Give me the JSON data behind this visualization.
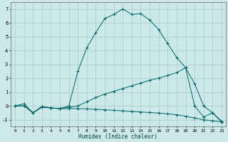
{
  "xlabel": "Humidex (Indice chaleur)",
  "background_color": "#cce8e8",
  "grid_color": "#aacccc",
  "line_color": "#006666",
  "xlim": [
    -0.5,
    23.5
  ],
  "ylim": [
    -1.5,
    7.5
  ],
  "xticks": [
    0,
    1,
    2,
    3,
    4,
    5,
    6,
    7,
    8,
    9,
    10,
    11,
    12,
    13,
    14,
    15,
    16,
    17,
    18,
    19,
    20,
    21,
    22,
    23
  ],
  "yticks": [
    -1,
    0,
    1,
    2,
    3,
    4,
    5,
    6,
    7
  ],
  "line3_x": [
    0,
    1,
    2,
    3,
    4,
    5,
    6,
    7,
    8,
    9,
    10,
    11,
    12,
    13,
    14,
    15,
    16,
    17,
    18,
    19,
    20,
    21,
    22,
    23
  ],
  "line3_y": [
    0.0,
    0.0,
    -0.5,
    -0.1,
    -0.15,
    -0.2,
    0.0,
    2.5,
    4.2,
    5.3,
    6.3,
    6.6,
    7.0,
    6.6,
    6.65,
    6.2,
    5.5,
    4.5,
    3.5,
    2.75,
    0.0,
    -0.8,
    -0.5,
    -1.15
  ],
  "line1_x": [
    0,
    1,
    2,
    3,
    4,
    5,
    6,
    7,
    8,
    9,
    10,
    11,
    12,
    13,
    14,
    15,
    16,
    17,
    18,
    19,
    20,
    21,
    22,
    23
  ],
  "line1_y": [
    0.0,
    0.15,
    -0.5,
    -0.05,
    -0.15,
    -0.2,
    -0.1,
    0.0,
    0.3,
    0.6,
    0.85,
    1.05,
    1.25,
    1.45,
    1.65,
    1.85,
    2.0,
    2.2,
    2.4,
    2.75,
    1.6,
    0.0,
    -0.5,
    -1.1
  ],
  "line2_x": [
    0,
    1,
    2,
    3,
    4,
    5,
    6,
    7,
    8,
    9,
    10,
    11,
    12,
    13,
    14,
    15,
    16,
    17,
    18,
    19,
    20,
    21,
    22,
    23
  ],
  "line2_y": [
    0.0,
    0.0,
    -0.5,
    -0.05,
    -0.15,
    -0.2,
    -0.2,
    -0.2,
    -0.22,
    -0.25,
    -0.28,
    -0.32,
    -0.36,
    -0.4,
    -0.44,
    -0.48,
    -0.52,
    -0.58,
    -0.64,
    -0.75,
    -0.88,
    -1.0,
    -1.08,
    -1.15
  ]
}
